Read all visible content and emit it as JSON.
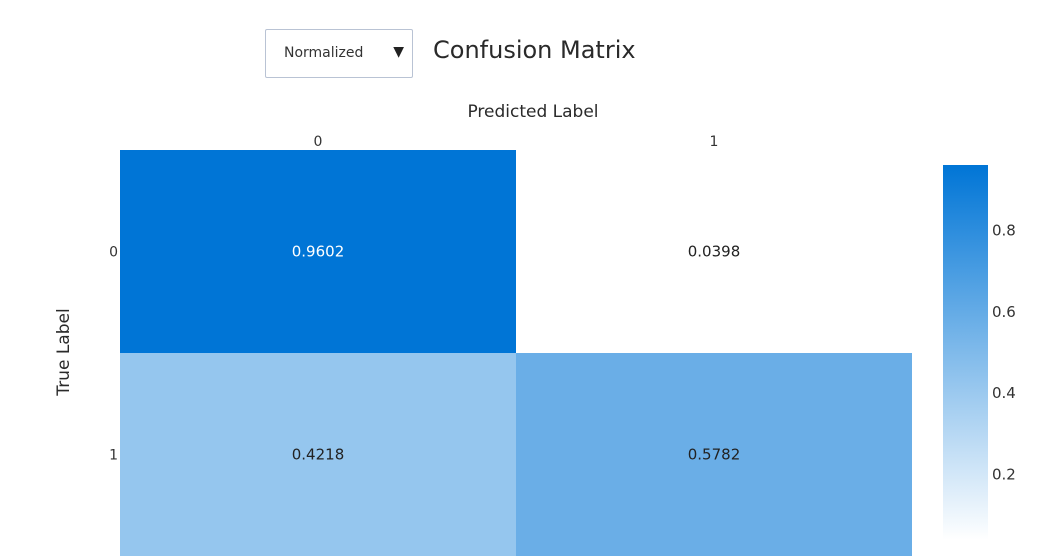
{
  "controls": {
    "normalization": {
      "selected": "Normalized"
    }
  },
  "title": "Confusion Matrix",
  "chart_data": {
    "type": "heatmap",
    "xlabel": "Predicted Label",
    "ylabel": "True Label",
    "x_categories": [
      "0",
      "1"
    ],
    "y_categories": [
      "0",
      "1"
    ],
    "x_axis_position": "top",
    "z": [
      [
        0.9602,
        0.0398
      ],
      [
        0.4218,
        0.5782
      ]
    ],
    "cell_labels": [
      [
        "0.9602",
        "0.0398"
      ],
      [
        "0.4218",
        "0.5782"
      ]
    ],
    "colorscale": {
      "min_color": "#ffffff",
      "max_color": "#0075d6",
      "zmin": 0.0398,
      "zmax": 0.9602
    },
    "colorbar": {
      "ticks": [
        0.2,
        0.4,
        0.6,
        0.8
      ],
      "tick_labels": [
        "0.2",
        "0.4",
        "0.6",
        "0.8"
      ]
    },
    "cell_text_colors": {
      "dark_cell": "#ffffff",
      "light_cell": "#222222"
    }
  }
}
